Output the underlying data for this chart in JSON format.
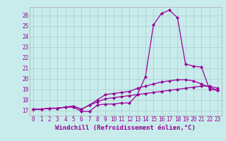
{
  "xlabel": "Windchill (Refroidissement éolien,°C)",
  "ylabel": "",
  "background_color": "#c8ecec",
  "line_color": "#990099",
  "grid_color": "#aacccc",
  "x_ticks": [
    0,
    1,
    2,
    3,
    4,
    5,
    6,
    7,
    8,
    9,
    10,
    11,
    12,
    13,
    14,
    15,
    16,
    17,
    18,
    19,
    20,
    21,
    22,
    23
  ],
  "y_ticks": [
    17,
    18,
    19,
    20,
    21,
    22,
    23,
    24,
    25,
    26
  ],
  "xlim": [
    -0.5,
    23.5
  ],
  "ylim": [
    16.5,
    26.8
  ],
  "line1": [
    17.1,
    17.1,
    17.2,
    17.2,
    17.3,
    17.3,
    16.9,
    16.9,
    17.5,
    17.6,
    17.6,
    17.7,
    17.7,
    18.5,
    20.2,
    25.1,
    26.2,
    26.5,
    25.8,
    21.4,
    21.2,
    21.1,
    19.0,
    18.9
  ],
  "line2": [
    17.1,
    17.1,
    17.2,
    17.2,
    17.3,
    17.4,
    17.1,
    17.5,
    18.0,
    18.5,
    18.6,
    18.7,
    18.8,
    19.1,
    19.3,
    19.5,
    19.7,
    19.8,
    19.9,
    19.9,
    19.8,
    19.5,
    19.2,
    18.9
  ],
  "line3": [
    17.1,
    17.1,
    17.2,
    17.2,
    17.3,
    17.4,
    17.1,
    17.5,
    17.8,
    18.1,
    18.2,
    18.3,
    18.4,
    18.5,
    18.6,
    18.7,
    18.8,
    18.9,
    19.0,
    19.1,
    19.2,
    19.3,
    19.3,
    19.1
  ],
  "marker": "D",
  "markersize": 2.0,
  "linewidth": 0.9,
  "tick_fontsize": 5.5,
  "xlabel_fontsize": 6.5
}
